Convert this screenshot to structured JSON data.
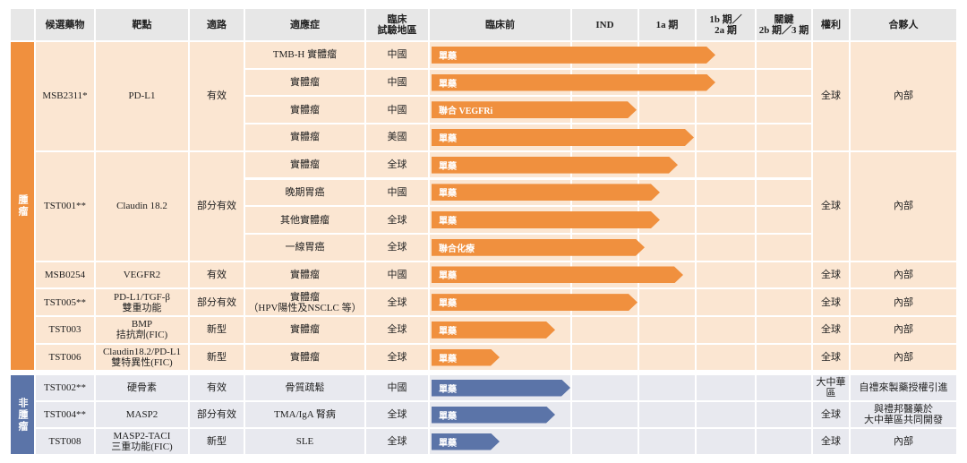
{
  "header": [
    "候選藥物",
    "靶點",
    "適路",
    "適應症",
    "臨床\n試驗地區",
    "臨床前",
    "IND",
    "1a 期",
    "1b 期／\n2a 期",
    "關鍵\n2b 期／3 期",
    "權利",
    "合夥人"
  ],
  "groups": [
    {
      "label": "腫瘤",
      "drugs": [
        {
          "name": "MSB2311*",
          "target": "PD-L1",
          "route": "有效",
          "rights": "全球",
          "partner": "內部",
          "indications": [
            {
              "name": "TMB-H 實體瘤",
              "region": "中國",
              "therapy": "單藥"
            },
            {
              "name": "實體瘤",
              "region": "中國",
              "therapy": "單藥"
            },
            {
              "name": "實體瘤",
              "region": "中國",
              "therapy": "聯合 VEGFRi"
            },
            {
              "name": "實體瘤",
              "region": "美國",
              "therapy": "單藥"
            }
          ]
        },
        {
          "name": "TST001**",
          "target": "Claudin 18.2",
          "route": "部分有效",
          "rights": "全球",
          "partner": "內部",
          "indications": [
            {
              "name": "實體瘤",
              "region": "全球",
              "therapy": "單藥"
            },
            {
              "name": "晚期胃癌",
              "region": "中國",
              "therapy": "單藥"
            },
            {
              "name": "其他實體瘤",
              "region": "全球",
              "therapy": "單藥"
            },
            {
              "name": "一線胃癌",
              "region": "全球",
              "therapy": "聯合化療"
            }
          ]
        },
        {
          "name": "MSB0254",
          "target": "VEGFR2",
          "route": "有效",
          "rights": "全球",
          "partner": "內部",
          "indications": [
            {
              "name": "實體瘤",
              "region": "中國",
              "therapy": "單藥"
            }
          ]
        },
        {
          "name": "TST005**",
          "target": "PD-L1/TGF-β\n雙重功能",
          "route": "部分有效",
          "rights": "全球",
          "partner": "內部",
          "indications": [
            {
              "name": "實體瘤\n（HPV陽性及NSCLC 等）",
              "region": "全球",
              "therapy": "單藥"
            }
          ]
        },
        {
          "name": "TST003",
          "target": "BMP\n拮抗劑(FIC)",
          "route": "新型",
          "rights": "全球",
          "partner": "內部",
          "indications": [
            {
              "name": "實體瘤",
              "region": "全球",
              "therapy": "單藥"
            }
          ]
        },
        {
          "name": "TST006",
          "target": "Claudin18.2/PD-L1\n雙特異性(FIC)",
          "route": "新型",
          "rights": "全球",
          "partner": "內部",
          "indications": [
            {
              "name": "實體瘤",
              "region": "全球",
              "therapy": "單藥"
            }
          ]
        }
      ]
    },
    {
      "label": "非腫瘤",
      "drugs": [
        {
          "name": "TST002**",
          "target": "硬骨素",
          "route": "有效",
          "rights": "大中華區",
          "partner": "自禮來製藥授權引進",
          "indications": [
            {
              "name": "骨質疏鬆",
              "region": "中國",
              "therapy": "單藥"
            }
          ]
        },
        {
          "name": "TST004**",
          "target": "MASP2",
          "route": "部分有效",
          "rights": "全球",
          "partner": "與禮邦醫藥於\n大中華區共同開發",
          "indications": [
            {
              "name": "TMA/IgA 腎病",
              "region": "全球",
              "therapy": "單藥"
            }
          ]
        },
        {
          "name": "TST008",
          "target": "MASP2-TACI\n三重功能(FIC)",
          "route": "新型",
          "rights": "全球",
          "partner": "內部",
          "indications": [
            {
              "name": "SLE",
              "region": "全球",
              "therapy": "單藥"
            }
          ]
        }
      ]
    }
  ]
}
